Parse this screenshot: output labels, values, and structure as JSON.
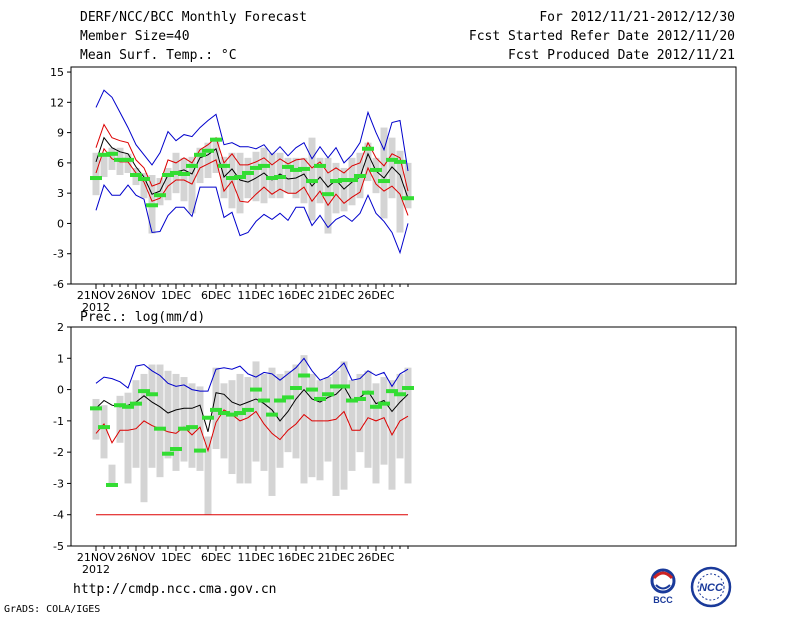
{
  "header": {
    "title": "DERF/NCC/BCC Monthly Forecast",
    "member_size": "Member Size=40",
    "variable": "Mean Surf. Temp.: °C",
    "for_range": "For 2012/11/21-2012/12/30",
    "started": "Fcst Started Refer Date 2012/11/20",
    "produced": "Fcst Produced Date 2012/11/21"
  },
  "precip_label": "Prec.: log(mm/d)",
  "footer": {
    "url": "http://cmdp.ncc.cma.gov.cn",
    "credit": "GrADS: COLA/IGES"
  },
  "logos": {
    "bcc": "BCC",
    "ncc": "NCC"
  },
  "colors": {
    "box": "#d4d4d4",
    "median": "#33dd33",
    "mean": "#000000",
    "spread": "#dd0000",
    "extreme": "#0000cc"
  },
  "chart_data": [
    {
      "type": "line",
      "title": "Mean Surf. Temp.: °C",
      "x_ticks": [
        "21NOV",
        "26NOV",
        "1DEC",
        "6DEC",
        "11DEC",
        "16DEC",
        "21DEC",
        "26DEC"
      ],
      "x_tick_days": [
        0,
        5,
        10,
        15,
        20,
        25,
        30,
        35
      ],
      "year_label": "2012",
      "ylim": [
        -6,
        15.5
      ],
      "y_ticks": [
        -6,
        -3,
        0,
        3,
        6,
        9,
        12,
        15
      ],
      "days": [
        0,
        1,
        2,
        3,
        4,
        5,
        6,
        7,
        8,
        9,
        10,
        11,
        12,
        13,
        14,
        15,
        16,
        17,
        18,
        19,
        20,
        21,
        22,
        23,
        24,
        25,
        26,
        27,
        28,
        29,
        30,
        31,
        32,
        33,
        34,
        35,
        36,
        37,
        38,
        39
      ],
      "series": [
        {
          "name": "max",
          "values": [
            11.5,
            13.2,
            12.5,
            11.0,
            9.5,
            7.8,
            6.8,
            5.8,
            7.0,
            9.1,
            8.2,
            8.8,
            8.6,
            9.5,
            10.2,
            10.8,
            7.8,
            8.0,
            7.6,
            7.6,
            7.4,
            7.8,
            6.8,
            7.6,
            6.7,
            7.5,
            8.0,
            6.4,
            7.6,
            6.5,
            7.5,
            6.0,
            6.8,
            8.0,
            11.0,
            9.0,
            7.3,
            10.0,
            10.2,
            5.2
          ]
        },
        {
          "name": "mean_plus_std",
          "values": [
            7.5,
            9.8,
            8.5,
            8.2,
            8.0,
            6.3,
            5.5,
            3.7,
            4.0,
            6.3,
            6.0,
            6.5,
            6.0,
            7.3,
            7.8,
            8.5,
            6.0,
            6.9,
            5.8,
            5.8,
            6.1,
            6.5,
            5.8,
            6.4,
            5.9,
            6.3,
            6.4,
            5.5,
            6.1,
            5.0,
            5.5,
            5.0,
            5.7,
            6.0,
            8.0,
            6.5,
            5.7,
            6.9,
            6.5,
            3.2
          ]
        },
        {
          "name": "mean",
          "values": [
            6.1,
            8.5,
            7.5,
            7.1,
            6.9,
            5.6,
            4.6,
            2.9,
            3.2,
            4.8,
            5.1,
            5.3,
            4.9,
            6.5,
            6.8,
            7.4,
            4.6,
            5.4,
            4.3,
            4.1,
            4.5,
            5.0,
            4.3,
            4.9,
            4.4,
            4.5,
            4.9,
            3.7,
            4.6,
            3.6,
            4.3,
            3.4,
            4.1,
            4.6,
            6.9,
            5.2,
            4.5,
            5.6,
            4.8,
            2.5
          ]
        },
        {
          "name": "mean_minus_std",
          "values": [
            5.0,
            7.4,
            6.4,
            6.1,
            6.1,
            5.0,
            4.1,
            2.2,
            2.5,
            3.7,
            4.3,
            4.3,
            3.9,
            5.5,
            5.9,
            6.3,
            3.2,
            4.2,
            2.2,
            2.1,
            2.9,
            3.6,
            2.9,
            3.4,
            3.0,
            3.0,
            3.6,
            2.2,
            3.2,
            1.8,
            2.9,
            2.0,
            2.6,
            3.1,
            5.5,
            3.9,
            3.2,
            3.7,
            2.9,
            0.8
          ]
        },
        {
          "name": "min",
          "values": [
            1.3,
            3.8,
            2.8,
            2.8,
            3.8,
            2.8,
            2.4,
            -0.9,
            -0.8,
            0.8,
            1.6,
            1.6,
            0.7,
            3.6,
            3.6,
            3.6,
            0.6,
            1.1,
            -1.2,
            -0.9,
            0.2,
            0.9,
            0.4,
            1.0,
            0.3,
            1.6,
            1.6,
            -0.2,
            0.8,
            -0.4,
            0.4,
            0.8,
            0.2,
            1.0,
            2.8,
            1.0,
            0.2,
            -0.9,
            -2.9,
            0.0
          ]
        },
        {
          "name": "median",
          "values": [
            4.5,
            6.8,
            6.9,
            6.3,
            6.3,
            4.8,
            4.4,
            1.8,
            2.8,
            4.8,
            5.0,
            4.9,
            5.7,
            6.8,
            7.2,
            8.3,
            5.7,
            4.5,
            4.6,
            5.0,
            5.5,
            5.7,
            4.5,
            4.6,
            5.6,
            5.3,
            5.4,
            4.2,
            5.7,
            2.9,
            4.2,
            4.3,
            4.3,
            4.7,
            7.4,
            5.3,
            4.2,
            6.3,
            6.1,
            2.5
          ]
        },
        {
          "name": "box_top",
          "values": [
            7.0,
            6.9,
            7.5,
            7.5,
            6.9,
            5.5,
            5.0,
            4.8,
            4.5,
            5.5,
            7.0,
            6.5,
            6.6,
            7.5,
            8.0,
            8.5,
            6.6,
            7.0,
            7.0,
            6.5,
            7.1,
            7.5,
            7.0,
            7.0,
            6.5,
            6.5,
            6.5,
            8.5,
            6.5,
            6.5,
            6.0,
            5.5,
            6.5,
            7.0,
            8.0,
            6.5,
            9.5,
            8.5,
            7.2,
            6.0
          ]
        },
        {
          "name": "box_bottom",
          "values": [
            2.8,
            4.6,
            5.3,
            4.8,
            5.0,
            3.8,
            2.5,
            -1.0,
            1.8,
            2.3,
            3.0,
            2.2,
            1.0,
            4.0,
            4.5,
            5.0,
            2.5,
            1.5,
            1.0,
            2.5,
            2.2,
            2.0,
            2.5,
            2.5,
            3.0,
            2.5,
            2.0,
            0.3,
            2.0,
            -1.0,
            1.0,
            1.2,
            1.8,
            2.5,
            4.2,
            3.0,
            0.5,
            2.5,
            -0.9,
            1.5
          ]
        }
      ]
    },
    {
      "type": "line",
      "title": "Prec.: log(mm/d)",
      "x_ticks": [
        "21NOV",
        "26NOV",
        "1DEC",
        "6DEC",
        "11DEC",
        "16DEC",
        "21DEC",
        "26DEC"
      ],
      "x_tick_days": [
        0,
        5,
        10,
        15,
        20,
        25,
        30,
        35
      ],
      "year_label": "2012",
      "ylim": [
        -5,
        2
      ],
      "y_ticks": [
        -5,
        -4,
        -3,
        -2,
        -1,
        0,
        1,
        2
      ],
      "days": [
        0,
        1,
        2,
        3,
        4,
        5,
        6,
        7,
        8,
        9,
        10,
        11,
        12,
        13,
        14,
        15,
        16,
        17,
        18,
        19,
        20,
        21,
        22,
        23,
        24,
        25,
        26,
        27,
        28,
        29,
        30,
        31,
        32,
        33,
        34,
        35,
        36,
        37,
        38,
        39
      ],
      "series": [
        {
          "name": "max",
          "values": [
            0.2,
            0.4,
            0.35,
            0.25,
            0.05,
            0.75,
            0.8,
            0.6,
            0.45,
            0.2,
            0.1,
            0.15,
            0.0,
            -0.05,
            -0.05,
            0.65,
            0.7,
            0.65,
            0.75,
            0.5,
            0.4,
            0.55,
            0.5,
            0.3,
            0.5,
            0.7,
            1.0,
            0.6,
            0.3,
            0.4,
            0.6,
            0.85,
            0.3,
            0.35,
            0.6,
            0.45,
            0.55,
            0.1,
            0.5,
            0.65
          ]
        },
        {
          "name": "mean",
          "values": [
            -0.6,
            -0.35,
            -0.5,
            -0.55,
            -0.5,
            -0.4,
            -0.2,
            -0.4,
            -0.55,
            -0.75,
            -0.65,
            -0.6,
            -0.6,
            -0.5,
            -1.35,
            -0.1,
            -0.15,
            -0.4,
            -0.5,
            -0.4,
            -0.3,
            -0.45,
            -0.65,
            -1.0,
            -0.7,
            -0.3,
            0.0,
            -0.3,
            -0.4,
            -0.25,
            -0.15,
            0.1,
            -0.35,
            -0.25,
            -0.05,
            -0.45,
            -0.35,
            -0.7,
            -0.4,
            -0.15
          ]
        },
        {
          "name": "mean_minus_std",
          "values": [
            -1.4,
            -1.1,
            -1.7,
            -1.3,
            -1.3,
            -1.25,
            -1.0,
            -1.15,
            -1.25,
            -1.35,
            -1.4,
            -1.2,
            -1.45,
            -1.2,
            -1.95,
            -1.05,
            -0.65,
            -0.8,
            -1.0,
            -0.9,
            -0.7,
            -1.1,
            -1.4,
            -1.6,
            -1.3,
            -1.1,
            -0.8,
            -1.0,
            -1.0,
            -1.0,
            -0.95,
            -0.7,
            -1.3,
            -1.3,
            -0.9,
            -1.0,
            -0.9,
            -1.45,
            -1.0,
            -0.85
          ]
        },
        {
          "name": "min",
          "values": [
            -4,
            -4,
            -4,
            -4,
            -4,
            -4,
            -4,
            -4,
            -4,
            -4,
            -4,
            -4,
            -4,
            -4,
            -4,
            -4,
            -4,
            -4,
            -4,
            -4,
            -4,
            -4,
            -4,
            -4,
            -4,
            -4,
            -4,
            -4,
            -4,
            -4,
            -4,
            -4,
            -4,
            -4,
            -4,
            -4,
            -4,
            -4,
            -4,
            -4
          ]
        },
        {
          "name": "median",
          "values": [
            -0.6,
            -1.2,
            -3.05,
            -0.5,
            -0.55,
            -0.45,
            -0.05,
            -0.15,
            -1.25,
            -2.05,
            -1.9,
            -1.25,
            -1.2,
            -1.95,
            -0.9,
            -0.65,
            -0.75,
            -0.8,
            -0.75,
            -0.65,
            0.0,
            -0.35,
            -0.8,
            -0.35,
            -0.25,
            0.05,
            0.45,
            0.0,
            -0.3,
            -0.15,
            0.1,
            0.1,
            -0.35,
            -0.3,
            -0.1,
            -0.55,
            -0.45,
            -0.05,
            -0.15,
            0.05
          ]
        },
        {
          "name": "box_top",
          "values": [
            -0.3,
            -0.5,
            -2.4,
            -0.2,
            -0.1,
            0.3,
            0.5,
            0.8,
            0.8,
            0.6,
            0.5,
            0.4,
            0.2,
            0.1,
            -1.5,
            0.7,
            0.2,
            0.3,
            0.5,
            0.4,
            0.9,
            0.5,
            0.7,
            0.5,
            0.6,
            0.8,
            1.1,
            0.5,
            0.3,
            0.4,
            0.6,
            0.9,
            0.3,
            0.5,
            0.6,
            0.2,
            0.4,
            0.3,
            0.5,
            0.7
          ]
        },
        {
          "name": "box_bottom",
          "values": [
            -1.6,
            -2.2,
            -3.0,
            -1.7,
            -3.0,
            -2.5,
            -3.6,
            -2.5,
            -2.8,
            -2.2,
            -2.6,
            -2.3,
            -2.5,
            -2.6,
            -4.0,
            -1.9,
            -2.2,
            -2.7,
            -3.0,
            -3.0,
            -2.3,
            -2.6,
            -3.4,
            -2.5,
            -2.0,
            -2.2,
            -3.0,
            -2.8,
            -2.9,
            -2.3,
            -3.4,
            -3.2,
            -2.6,
            -2.0,
            -2.5,
            -3.0,
            -2.4,
            -3.2,
            -2.2,
            -3.0
          ]
        }
      ]
    }
  ]
}
